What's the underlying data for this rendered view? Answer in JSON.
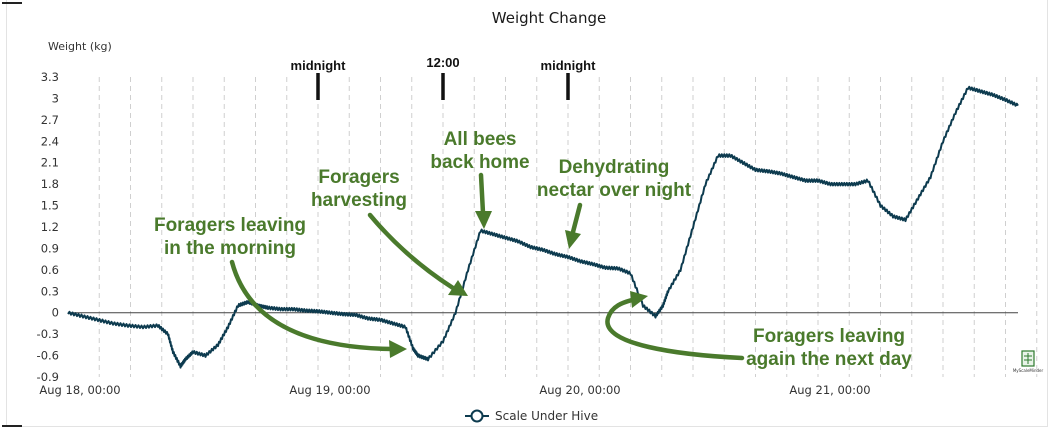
{
  "chart_data": {
    "type": "line",
    "title": "Weight Change",
    "ylabel": "Weight (kg)",
    "xlabel": "",
    "ylim": [
      -0.9,
      3.3
    ],
    "yticks": [
      3.3,
      3,
      2.7,
      2.4,
      2.1,
      1.8,
      1.5,
      1.2,
      0.9,
      0.6,
      0.3,
      0,
      -0.3,
      -0.6,
      -0.9
    ],
    "ytick_labels": [
      "3.3",
      "3",
      "2.7",
      "2.4",
      "2.1",
      "1.8",
      "1.5",
      "1.2",
      "0.9",
      "0.6",
      "0.3",
      "0",
      "-0.3",
      "-0.6",
      "-0.9"
    ],
    "xlim": [
      0,
      3.8
    ],
    "x_unit": "days from Aug 18, 00:00",
    "xticks": [
      {
        "x": 0,
        "label": "Aug 18, 00:00"
      },
      {
        "x": 1,
        "label": "Aug 19, 00:00"
      },
      {
        "x": 2,
        "label": "Aug 20, 00:00"
      },
      {
        "x": 3,
        "label": "Aug 21, 00:00"
      }
    ],
    "grid": true,
    "legend": {
      "position": "bottom-center",
      "label": "Scale Under Hive"
    },
    "series": [
      {
        "name": "Scale Under Hive",
        "color": "#0d3b4f",
        "x": [
          0,
          0.06,
          0.12,
          0.18,
          0.24,
          0.3,
          0.36,
          0.4,
          0.42,
          0.45,
          0.47,
          0.5,
          0.55,
          0.6,
          0.64,
          0.68,
          0.72,
          0.76,
          0.8,
          0.85,
          0.9,
          0.95,
          1.0,
          1.05,
          1.1,
          1.15,
          1.2,
          1.25,
          1.3,
          1.35,
          1.38,
          1.4,
          1.44,
          1.5,
          1.55,
          1.6,
          1.65,
          1.7,
          1.75,
          1.8,
          1.85,
          1.9,
          1.95,
          2.0,
          2.05,
          2.1,
          2.15,
          2.2,
          2.25,
          2.3,
          2.35,
          2.38,
          2.4,
          2.45,
          2.5,
          2.55,
          2.6,
          2.65,
          2.7,
          2.75,
          2.8,
          2.85,
          2.9,
          2.95,
          3.0,
          3.05,
          3.1,
          3.15,
          3.2,
          3.25,
          3.3,
          3.35,
          3.4,
          3.45,
          3.5,
          3.55,
          3.6,
          3.65,
          3.7,
          3.75,
          3.8
        ],
        "y": [
          0,
          -0.05,
          -0.1,
          -0.15,
          -0.18,
          -0.2,
          -0.18,
          -0.3,
          -0.55,
          -0.75,
          -0.65,
          -0.55,
          -0.6,
          -0.45,
          -0.2,
          0.1,
          0.15,
          0.1,
          0.07,
          0.05,
          0.05,
          0.03,
          0.02,
          0.0,
          -0.02,
          -0.03,
          -0.08,
          -0.1,
          -0.15,
          -0.2,
          -0.5,
          -0.6,
          -0.65,
          -0.4,
          0.0,
          0.6,
          1.15,
          1.1,
          1.05,
          1.0,
          0.92,
          0.88,
          0.82,
          0.78,
          0.72,
          0.68,
          0.63,
          0.62,
          0.55,
          0.1,
          -0.05,
          0.1,
          0.3,
          0.6,
          1.2,
          1.8,
          2.2,
          2.2,
          2.1,
          2.0,
          1.98,
          1.95,
          1.9,
          1.85,
          1.85,
          1.8,
          1.8,
          1.8,
          1.85,
          1.5,
          1.35,
          1.3,
          1.6,
          1.9,
          2.4,
          2.8,
          3.15,
          3.1,
          3.05,
          2.98,
          2.9
        ]
      }
    ],
    "markers": [
      {
        "x": 1.0,
        "label": "midnight"
      },
      {
        "x": 1.5,
        "label": "12:00"
      },
      {
        "x": 2.0,
        "label": "midnight"
      }
    ],
    "annotations": [
      {
        "lines": [
          "Foragers leaving",
          "in the morning"
        ]
      },
      {
        "lines": [
          "Foragers",
          "harvesting"
        ]
      },
      {
        "lines": [
          "All bees",
          "back home"
        ]
      },
      {
        "lines": [
          "Dehydrating",
          "nectar over night"
        ]
      },
      {
        "lines": [
          "Foragers leaving",
          "again the next day"
        ]
      }
    ],
    "annotation_color": "#4a7a2c",
    "logo_text": "MyScaleMinder"
  }
}
